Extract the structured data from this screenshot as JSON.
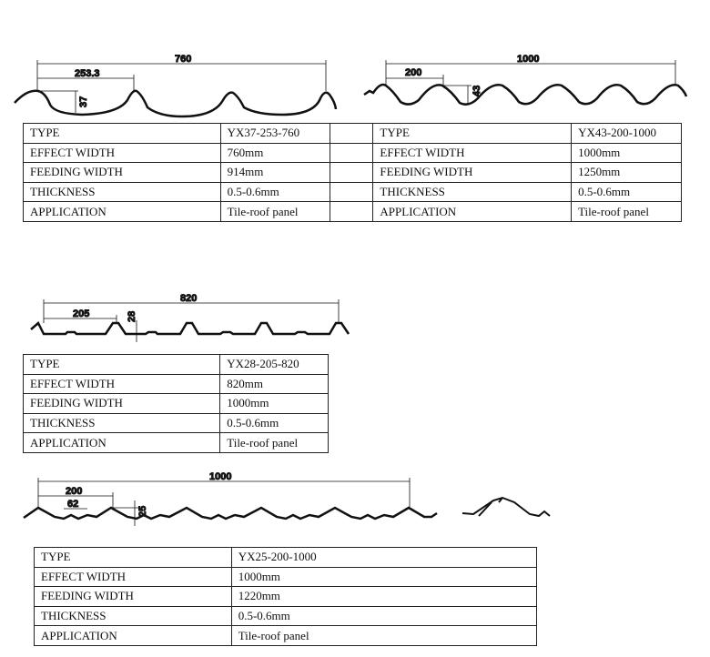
{
  "profiles": [
    {
      "dims": {
        "total": "760",
        "pitch": "253.3",
        "height": "37"
      }
    },
    {
      "dims": {
        "total": "1000",
        "pitch": "200",
        "height": "43"
      }
    },
    {
      "dims": {
        "total": "820",
        "pitch": "205",
        "height": "28"
      }
    },
    {
      "dims": {
        "total": "1000",
        "pitch": "200",
        "sub": "62",
        "height": "25"
      }
    }
  ],
  "tables": [
    {
      "rows": [
        [
          "TYPE",
          "YX37-253-760",
          "TYPE",
          "YX43-200-1000"
        ],
        [
          "EFFECT WIDTH",
          "760mm",
          "EFFECT WIDTH",
          "1000mm"
        ],
        [
          "FEEDING WIDTH",
          "914mm",
          "FEEDING WIDTH",
          "1250mm"
        ],
        [
          "THICKNESS",
          "0.5-0.6mm",
          "THICKNESS",
          "0.5-0.6mm"
        ],
        [
          "APPLICATION",
          "Tile-roof panel",
          "APPLICATION",
          "Tile-roof panel"
        ]
      ]
    },
    {
      "rows": [
        [
          "TYPE",
          "YX28-205-820"
        ],
        [
          "EFFECT WIDTH",
          "820mm"
        ],
        [
          "FEEDING WIDTH",
          "1000mm"
        ],
        [
          "THICKNESS",
          "0.5-0.6mm"
        ],
        [
          "APPLICATION",
          "Tile-roof panel"
        ]
      ]
    },
    {
      "rows": [
        [
          "TYPE",
          "YX25-200-1000"
        ],
        [
          "EFFECT WIDTH",
          "1000mm"
        ],
        [
          "FEEDING WIDTH",
          "1220mm"
        ],
        [
          "THICKNESS",
          "0.5-0.6mm"
        ],
        [
          "APPLICATION",
          "Tile-roof panel"
        ]
      ]
    }
  ]
}
